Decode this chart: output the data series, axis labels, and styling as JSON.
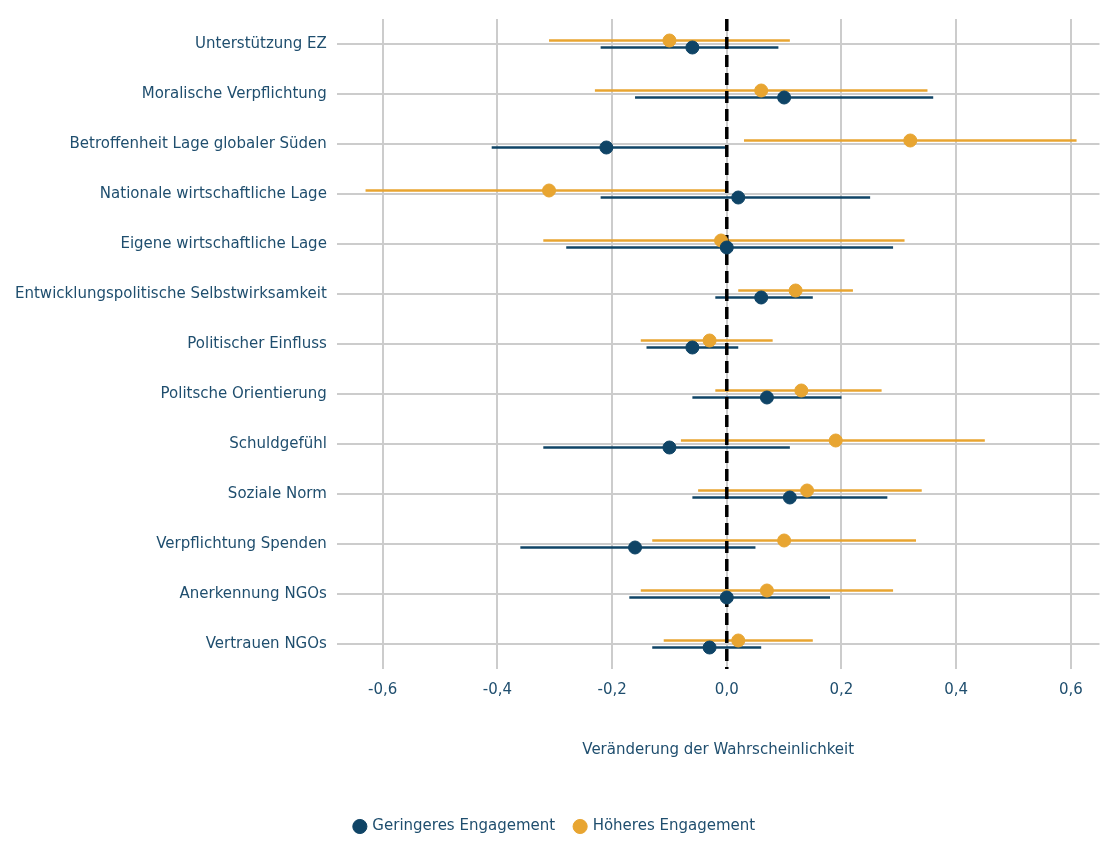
{
  "chart_data": {
    "type": "scatter",
    "orientation": "horizontal",
    "xlabel": "Veränderung der Wahrscheinlichkeit",
    "categories": [
      "Unterstützung EZ",
      "Moralische Verpflichtung",
      "Betroffenheit Lage globaler Süden",
      "Nationale wirtschaftliche Lage",
      "Eigene wirtschaftliche Lage",
      "Entwicklungspolitische Selbstwirksamkeit",
      "Politischer Einfluss",
      "Politsche Orientierung",
      "Schuldgefühl",
      "Soziale Norm",
      "Verpflichtung Spenden",
      "Anerkennung NGOs",
      "Vertrauen NGOs"
    ],
    "series": [
      {
        "name": "Geringeres Engagement",
        "color": "#0f4466",
        "values": [
          -0.06,
          0.1,
          -0.21,
          0.02,
          0.0,
          0.06,
          -0.06,
          0.07,
          -0.1,
          0.11,
          -0.16,
          0.0,
          -0.03
        ],
        "errors": [
          [
            -0.22,
            0.09
          ],
          [
            -0.16,
            0.36
          ],
          [
            -0.41,
            0.0
          ],
          [
            -0.22,
            0.25
          ],
          [
            -0.28,
            0.29
          ],
          [
            -0.02,
            0.15
          ],
          [
            -0.14,
            0.02
          ],
          [
            -0.06,
            0.2
          ],
          [
            -0.32,
            0.11
          ],
          [
            -0.06,
            0.28
          ],
          [
            -0.36,
            0.05
          ],
          [
            -0.17,
            0.18
          ],
          [
            -0.13,
            0.06
          ]
        ]
      },
      {
        "name": "Höheres Engagement",
        "color": "#e8a531",
        "values": [
          -0.1,
          0.06,
          0.32,
          -0.31,
          -0.01,
          0.12,
          -0.03,
          0.13,
          0.19,
          0.14,
          0.1,
          0.07,
          0.02
        ],
        "errors": [
          [
            -0.31,
            0.11
          ],
          [
            -0.23,
            0.35
          ],
          [
            0.03,
            0.61
          ],
          [
            -0.63,
            0.0
          ],
          [
            -0.32,
            0.31
          ],
          [
            0.02,
            0.22
          ],
          [
            -0.15,
            0.08
          ],
          [
            -0.02,
            0.27
          ],
          [
            -0.08,
            0.45
          ],
          [
            -0.05,
            0.34
          ],
          [
            -0.13,
            0.33
          ],
          [
            -0.15,
            0.29
          ],
          [
            -0.11,
            0.15
          ]
        ]
      }
    ],
    "xlim": [
      -0.68,
      0.65
    ],
    "xticks": [
      {
        "value": -0.6,
        "label": "-0,6"
      },
      {
        "value": -0.4,
        "label": "-0,4"
      },
      {
        "value": -0.2,
        "label": "-0,2"
      },
      {
        "value": 0,
        "label": "0,0"
      },
      {
        "value": 0.2,
        "label": "0,2"
      },
      {
        "value": 0.4,
        "label": "0,4"
      },
      {
        "value": 0.6,
        "label": "0,6"
      }
    ],
    "ref_lines": [
      {
        "axis": "x",
        "value": 0,
        "color": "#000000",
        "line_style": "dashed"
      }
    ],
    "grid": true,
    "legend": "bottom",
    "marker": "circle"
  }
}
